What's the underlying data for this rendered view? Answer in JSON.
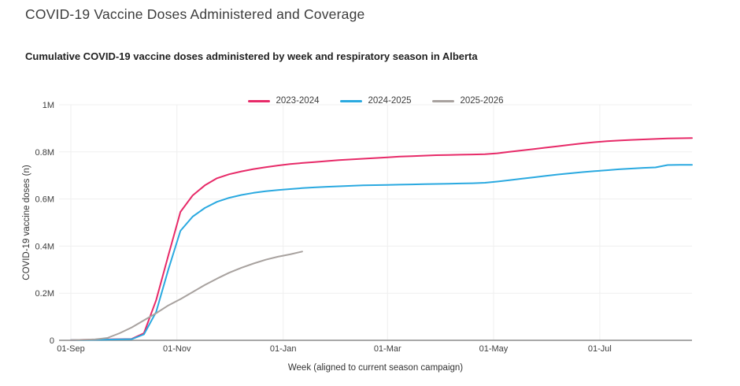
{
  "page": {
    "title": "COVID-19 Vaccine Doses Administered and Coverage",
    "subtitle": "Cumulative COVID-19 vaccine doses administered by week and respiratory season in Alberta"
  },
  "colors": {
    "background": "#ffffff",
    "grid": "#efefef",
    "axis_line": "#8c8c8c",
    "tick_text": "#3d3d3d",
    "title_text": "#3c3c3c",
    "subtitle_text": "#212121"
  },
  "chart_data": {
    "type": "line",
    "title": "Cumulative COVID-19 vaccine doses administered by week and respiratory season in Alberta",
    "xlabel": "Week (aligned to current season campaign)",
    "ylabel": "COVID-19 vaccine doses (n)",
    "x_unit": "weeks since 01-Sep, aligned to current season campaign",
    "y_unit": "doses (millions)",
    "ylim": [
      0,
      1000000
    ],
    "grid": true,
    "legend_position": "top-center",
    "x_ticks": [
      {
        "label": "01-Sep",
        "week": 0
      },
      {
        "label": "01-Nov",
        "week": 8.71
      },
      {
        "label": "01-Jan",
        "week": 17.43
      },
      {
        "label": "01-Mar",
        "week": 26.0
      },
      {
        "label": "01-May",
        "week": 34.71
      },
      {
        "label": "01-Jul",
        "week": 43.43
      }
    ],
    "y_ticks": [
      {
        "label": "0",
        "value": 0
      },
      {
        "label": "0.2M",
        "value": 0.2
      },
      {
        "label": "0.4M",
        "value": 0.4
      },
      {
        "label": "0.6M",
        "value": 0.6
      },
      {
        "label": "0.8M",
        "value": 0.8
      },
      {
        "label": "1M",
        "value": 1
      }
    ],
    "series": [
      {
        "name": "2023-2024",
        "color": "#e72a68",
        "start_week": 0,
        "cadence": "weekly",
        "values_millions": [
          0.001,
          0.002,
          0.003,
          0.004,
          0.005,
          0.006,
          0.03,
          0.17,
          0.36,
          0.545,
          0.615,
          0.658,
          0.688,
          0.705,
          0.717,
          0.727,
          0.735,
          0.742,
          0.748,
          0.753,
          0.757,
          0.761,
          0.765,
          0.768,
          0.771,
          0.774,
          0.777,
          0.78,
          0.782,
          0.784,
          0.786,
          0.787,
          0.788,
          0.789,
          0.79,
          0.794,
          0.8,
          0.806,
          0.812,
          0.818,
          0.824,
          0.83,
          0.836,
          0.841,
          0.845,
          0.848,
          0.851,
          0.853,
          0.855,
          0.857,
          0.858,
          0.859
        ]
      },
      {
        "name": "2024-2025",
        "color": "#2aa9e0",
        "start_week": 0,
        "cadence": "weekly",
        "values_millions": [
          0.001,
          0.001,
          0.002,
          0.003,
          0.004,
          0.005,
          0.025,
          0.12,
          0.3,
          0.465,
          0.525,
          0.562,
          0.588,
          0.605,
          0.617,
          0.626,
          0.633,
          0.638,
          0.642,
          0.646,
          0.649,
          0.652,
          0.654,
          0.656,
          0.658,
          0.659,
          0.66,
          0.661,
          0.662,
          0.663,
          0.664,
          0.665,
          0.666,
          0.667,
          0.669,
          0.674,
          0.68,
          0.686,
          0.692,
          0.698,
          0.704,
          0.709,
          0.714,
          0.718,
          0.722,
          0.726,
          0.729,
          0.732,
          0.734,
          0.744,
          0.745,
          0.745
        ]
      },
      {
        "name": "2025-2026",
        "color": "#a8a29f",
        "start_week": 0,
        "cadence": "weekly",
        "values_millions": [
          0.001,
          0.002,
          0.004,
          0.01,
          0.03,
          0.055,
          0.085,
          0.115,
          0.148,
          0.175,
          0.205,
          0.235,
          0.262,
          0.287,
          0.308,
          0.326,
          0.342,
          0.355,
          0.365,
          0.377
        ]
      }
    ]
  }
}
